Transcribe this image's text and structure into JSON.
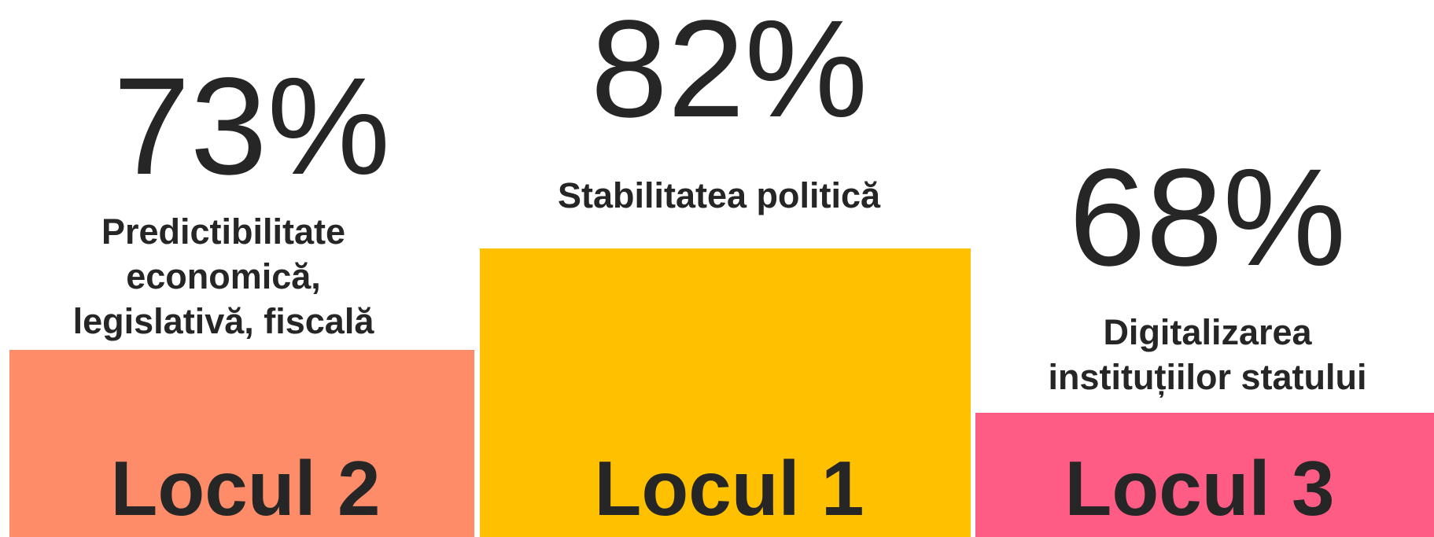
{
  "podium": [
    {
      "value": "73%",
      "label": [
        "Predictibilitate",
        "economică,",
        "legislativă, fiscală"
      ],
      "place": "Locul 2"
    },
    {
      "value": "82%",
      "label": [
        "Stabilitatea politică"
      ],
      "place": "Locul 1"
    },
    {
      "value": "68%",
      "label": [
        "Digitalizarea",
        "instituțiilor statului"
      ],
      "place": "Locul 3"
    }
  ]
}
